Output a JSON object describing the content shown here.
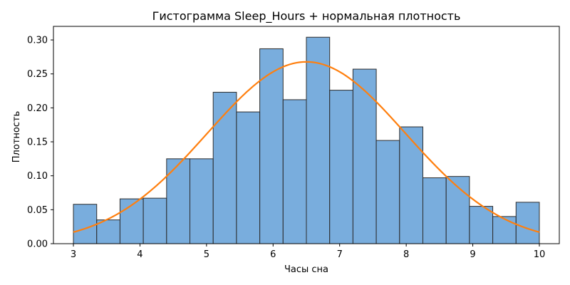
{
  "chart_data": {
    "type": "bar",
    "title": "Гистограмма Sleep_Hours + нормальная плотность",
    "xlabel": "Часы сна",
    "ylabel": "Плотность",
    "xlim": [
      2.7,
      10.3
    ],
    "ylim": [
      0,
      0.32
    ],
    "xticks": [
      3,
      4,
      5,
      6,
      7,
      8,
      9,
      10
    ],
    "yticks": [
      0.0,
      0.05,
      0.1,
      0.15,
      0.2,
      0.25,
      0.3
    ],
    "bin_edges": [
      3.0,
      3.35,
      3.7,
      4.05,
      4.4,
      4.75,
      5.1,
      5.45,
      5.8,
      6.15,
      6.5,
      6.85,
      7.2,
      7.55,
      7.9,
      8.25,
      8.6,
      8.95,
      9.3,
      9.65,
      10.0
    ],
    "densities": [
      0.058,
      0.035,
      0.066,
      0.067,
      0.125,
      0.125,
      0.223,
      0.194,
      0.287,
      0.212,
      0.304,
      0.226,
      0.257,
      0.152,
      0.172,
      0.097,
      0.099,
      0.055,
      0.04,
      0.061
    ],
    "normal_curve": {
      "mean": 6.5,
      "std": 1.49,
      "x_range": [
        3.0,
        10.0
      ]
    },
    "colors": {
      "bars": "#5b9bd5",
      "bar_edge": "#2d2d2d",
      "curve": "#ff7f0e"
    },
    "grid": false
  }
}
